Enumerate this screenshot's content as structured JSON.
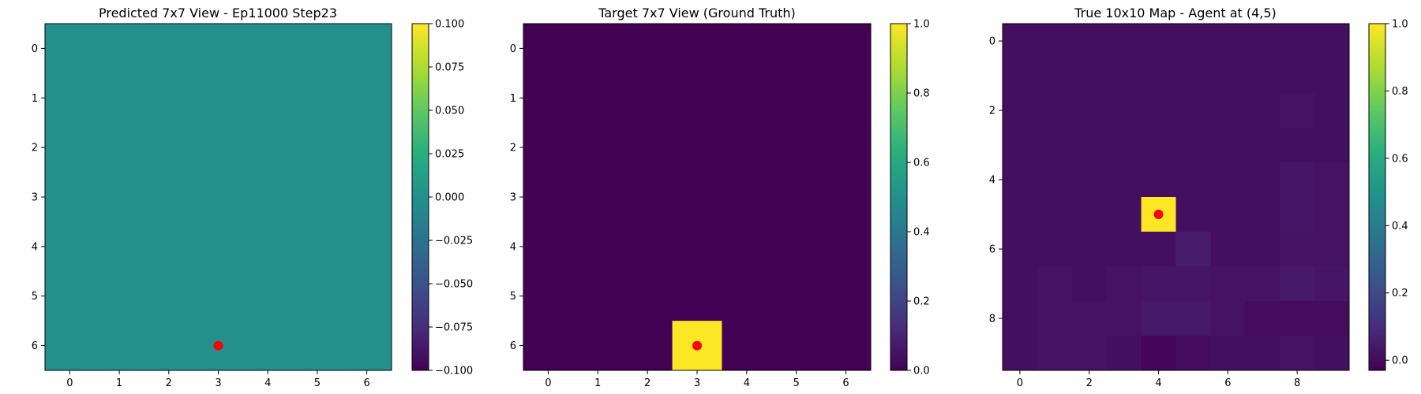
{
  "chart_data": [
    {
      "type": "heatmap",
      "title": "Predicted 7x7 View - Ep11000 Step23",
      "rows": 7,
      "cols": 7,
      "x_ticks": [
        0,
        1,
        2,
        3,
        4,
        5,
        6
      ],
      "y_ticks": [
        0,
        1,
        2,
        3,
        4,
        5,
        6
      ],
      "values": [
        [
          0,
          0,
          0,
          0,
          0,
          0,
          0
        ],
        [
          0,
          0,
          0,
          0,
          0,
          0,
          0
        ],
        [
          0,
          0,
          0,
          0,
          0,
          0,
          0
        ],
        [
          0,
          0,
          0,
          0,
          0,
          0,
          0
        ],
        [
          0,
          0,
          0,
          0,
          0,
          0,
          0
        ],
        [
          0,
          0,
          0,
          0,
          0,
          0,
          0
        ],
        [
          0,
          0,
          0,
          0,
          0,
          0,
          0
        ]
      ],
      "vmin": -0.1,
      "vmax": 0.1,
      "colormap": "viridis",
      "colorbar_ticks": [
        "0.100",
        "0.075",
        "0.050",
        "0.025",
        "0.000",
        "−0.025",
        "−0.050",
        "−0.075",
        "−0.100"
      ],
      "colorbar_tick_values": [
        0.1,
        0.075,
        0.05,
        0.025,
        0,
        -0.025,
        -0.05,
        -0.075,
        -0.1
      ],
      "marker": {
        "x": 3,
        "y": 6,
        "color": "#ff0000"
      }
    },
    {
      "type": "heatmap",
      "title": "Target 7x7 View (Ground Truth)",
      "rows": 7,
      "cols": 7,
      "x_ticks": [
        0,
        1,
        2,
        3,
        4,
        5,
        6
      ],
      "y_ticks": [
        0,
        1,
        2,
        3,
        4,
        5,
        6
      ],
      "values": [
        [
          0,
          0,
          0,
          0,
          0,
          0,
          0
        ],
        [
          0,
          0,
          0,
          0,
          0,
          0,
          0
        ],
        [
          0,
          0,
          0,
          0,
          0,
          0,
          0
        ],
        [
          0,
          0,
          0,
          0,
          0,
          0,
          0
        ],
        [
          0,
          0,
          0,
          0,
          0,
          0,
          0
        ],
        [
          0,
          0,
          0,
          0,
          0,
          0,
          0
        ],
        [
          0,
          0,
          0,
          1,
          0,
          0,
          0
        ]
      ],
      "vmin": 0,
      "vmax": 1,
      "colormap": "viridis",
      "colorbar_ticks": [
        "1.0",
        "0.8",
        "0.6",
        "0.4",
        "0.2",
        "0.0"
      ],
      "colorbar_tick_values": [
        1.0,
        0.8,
        0.6,
        0.4,
        0.2,
        0.0
      ],
      "marker": {
        "x": 3,
        "y": 6,
        "color": "#ff0000"
      }
    },
    {
      "type": "heatmap",
      "title": "True 10x10 Map - Agent at (4,5)",
      "rows": 10,
      "cols": 10,
      "x_ticks": [
        0,
        2,
        4,
        6,
        8
      ],
      "y_ticks": [
        0,
        2,
        4,
        6,
        8
      ],
      "values": [
        [
          0.01,
          0.01,
          0.01,
          0.01,
          0.01,
          0.01,
          0.01,
          0.01,
          0.01,
          0.01
        ],
        [
          0.01,
          0.01,
          0.01,
          0.01,
          0.01,
          0.01,
          0.01,
          0.01,
          0.01,
          0.01
        ],
        [
          0.01,
          0.01,
          0.01,
          0.01,
          0.01,
          0.01,
          0.01,
          0.01,
          0.02,
          0.01
        ],
        [
          0.01,
          0.01,
          0.01,
          0.01,
          0.01,
          0.01,
          0.01,
          0.01,
          0.01,
          0.01
        ],
        [
          0.01,
          0.01,
          0.01,
          0.01,
          0.01,
          0.01,
          0.01,
          0.01,
          0.03,
          0.02
        ],
        [
          0.01,
          0.01,
          0.01,
          0.01,
          1.0,
          0.01,
          0.01,
          0.01,
          0.03,
          0.02
        ],
        [
          0.01,
          0.01,
          0.01,
          0.01,
          0.01,
          0.05,
          0.01,
          0.01,
          0.02,
          0.02
        ],
        [
          0.01,
          0.02,
          0.01,
          0.02,
          0.03,
          0.03,
          0.02,
          0.02,
          0.04,
          0.03
        ],
        [
          0.01,
          0.02,
          0.02,
          0.02,
          0.04,
          0.04,
          0.02,
          0.0,
          0.0,
          0.0
        ],
        [
          0.01,
          0.02,
          0.02,
          0.01,
          -0.02,
          0.0,
          0.01,
          0.01,
          0.02,
          0.01
        ]
      ],
      "vmin": -0.03,
      "vmax": 1.0,
      "colormap": "viridis",
      "colorbar_ticks": [
        "1.0",
        "0.8",
        "0.6",
        "0.4",
        "0.2",
        "0.0"
      ],
      "colorbar_tick_values": [
        1.0,
        0.8,
        0.6,
        0.4,
        0.2,
        0.0
      ],
      "marker": {
        "x": 4,
        "y": 5,
        "color": "#ff0000"
      }
    }
  ]
}
